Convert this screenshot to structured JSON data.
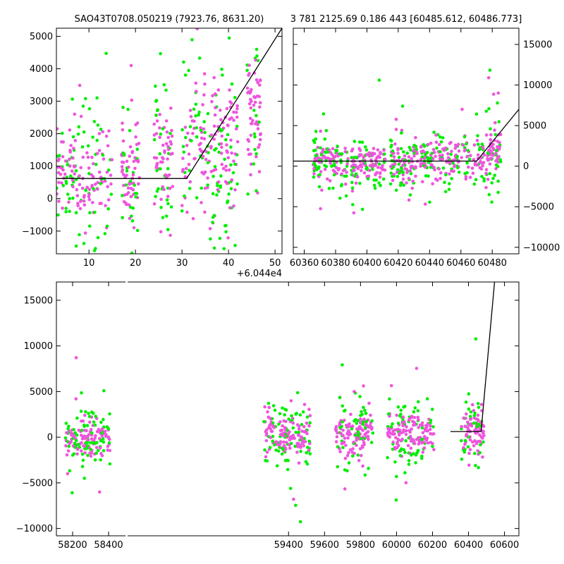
{
  "figure": {
    "left_title": "SAO43T0708.050219 (7923.76, 8631.20)",
    "right_title": "3 781 2125.69 0.186 443 [60485.612, 60486.773]",
    "colors": {
      "green": "#00ee00",
      "magenta": "#ee55dd",
      "line": "#000000"
    }
  },
  "chart_data": [
    {
      "id": "top-left",
      "type": "scatter",
      "title": "SAO43T0708.050219 (7923.76, 8631.20)",
      "xlim": [
        3,
        51.5
      ],
      "ylim": [
        -1700,
        5250
      ],
      "xticks": [
        10,
        20,
        30,
        40,
        50
      ],
      "xtick_labels": [
        "10",
        "20",
        "30",
        "40",
        "50"
      ],
      "yticks": [
        -1000,
        0,
        1000,
        2000,
        3000,
        4000,
        5000
      ],
      "ytick_labels": [
        "−1000",
        "0",
        "1000",
        "2000",
        "3000",
        "4000",
        "5000"
      ],
      "offset_label": "+6.044e4",
      "clusters": [
        {
          "x": [
            3,
            15
          ],
          "center": 700,
          "spread": 900
        },
        {
          "x": [
            17,
            21
          ],
          "center": 650,
          "spread": 900
        },
        {
          "x": [
            24,
            28
          ],
          "center": 1200,
          "spread": 1100
        },
        {
          "x": [
            30,
            38
          ],
          "center": 1400,
          "spread": 1200
        },
        {
          "x": [
            38,
            42
          ],
          "center": 1700,
          "spread": 1300
        },
        {
          "x": [
            44,
            47
          ],
          "center": 2600,
          "spread": 1200
        }
      ],
      "model_line": {
        "x": [
          3,
          31,
          51.5
        ],
        "y": [
          620,
          620,
          5250
        ]
      }
    },
    {
      "id": "top-right",
      "type": "scatter",
      "title": "3 781 2125.69 0.186 443 [60485.612, 60486.773]",
      "xlim": [
        60353,
        60497
      ],
      "ylim": [
        -10800,
        17000
      ],
      "xticks": [
        60360,
        60380,
        60400,
        60420,
        60440,
        60460,
        60480
      ],
      "xtick_labels": [
        "60360",
        "60380",
        "60400",
        "60420",
        "60440",
        "60460",
        "60480"
      ],
      "yticks": [
        -10000,
        -5000,
        0,
        5000,
        10000,
        15000
      ],
      "ytick_labels": [
        "−10000",
        "−5000",
        "0",
        "5000",
        "10000",
        "15000"
      ],
      "clusters": [
        {
          "x": [
            60365,
            60388
          ],
          "center": 400,
          "spread": 1300
        },
        {
          "x": [
            60390,
            60412
          ],
          "center": 400,
          "spread": 1300
        },
        {
          "x": [
            60415,
            60433
          ],
          "center": 400,
          "spread": 1500
        },
        {
          "x": [
            60434,
            60475
          ],
          "center": 800,
          "spread": 1400
        },
        {
          "x": [
            60476,
            60486
          ],
          "center": 1500,
          "spread": 2000
        }
      ],
      "model_line": {
        "x": [
          60353,
          60470,
          60497
        ],
        "y": [
          620,
          620,
          7000
        ]
      }
    },
    {
      "id": "bottom",
      "type": "scatter",
      "xlim": [
        58110,
        60680
      ],
      "ylim": [
        -10800,
        17000
      ],
      "xticks": [
        58200,
        58400,
        59400,
        59600,
        59800,
        60000,
        60200,
        60400,
        60600
      ],
      "xtick_labels": [
        "58200",
        "58400",
        "59400",
        "59600",
        "59800",
        "60000",
        "60200",
        "60400",
        "60600"
      ],
      "yticks": [
        -10000,
        -5000,
        0,
        5000,
        10000,
        15000
      ],
      "ytick_labels": [
        "−10000",
        "−5000",
        "0",
        "5000",
        "10000",
        "15000"
      ],
      "axis_break_x": 58500,
      "clusters": [
        {
          "x": [
            58160,
            58410
          ],
          "center": 0,
          "spread": 1400
        },
        {
          "x": [
            59260,
            59520
          ],
          "center": 0,
          "spread": 1400
        },
        {
          "x": [
            59660,
            59870
          ],
          "center": 400,
          "spread": 1500
        },
        {
          "x": [
            59950,
            60210
          ],
          "center": 300,
          "spread": 1500
        },
        {
          "x": [
            60360,
            60486
          ],
          "center": 600,
          "spread": 1500
        }
      ],
      "model_line": {
        "x": [
          60300,
          60470,
          60545
        ],
        "y": [
          620,
          620,
          17000
        ]
      }
    }
  ]
}
